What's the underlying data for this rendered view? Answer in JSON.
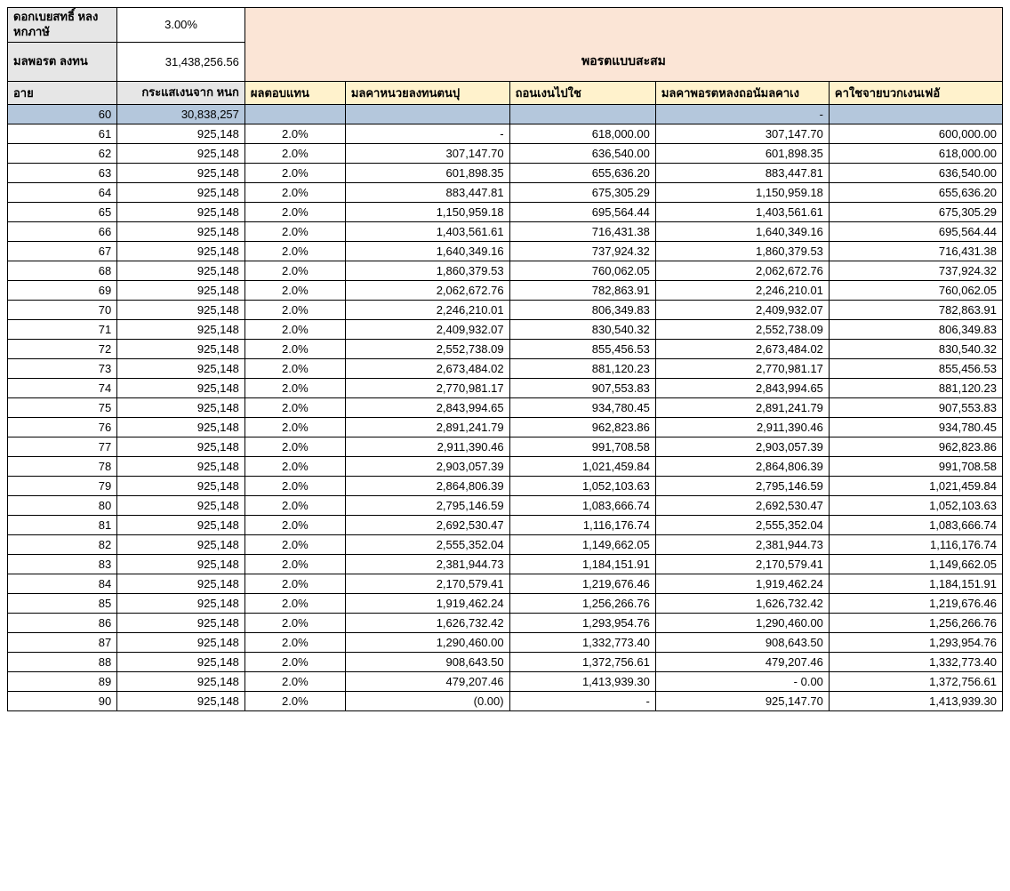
{
  "header": {
    "interest_label": "ดอกเบยสทธิ์\nหลงหกภาษั",
    "interest_value": "3.00%",
    "port_label": "มลพอรต\nลงทน",
    "port_value": "31,438,256.56",
    "section_title": "พอรตแบบสะสม"
  },
  "columns": {
    "age": "อาย",
    "cashflow": "กระแสเงนจาก\nหนก",
    "return": "ผลตอบแทน",
    "bop": "มลคาหนวยลงทนตนปุ",
    "withdraw": "ถอนเงนไปใช",
    "eop": "มลคาพอรตหลงถอนัมลคาเง",
    "expense": "คาใชจายบวกเงนเฟอั"
  },
  "rows": [
    {
      "age": "60",
      "cf": "30,838,257",
      "ret": "",
      "bop": "",
      "wd": "",
      "eop": "-",
      "exp": "",
      "sel": true
    },
    {
      "age": "61",
      "cf": "925,148",
      "ret": "2.0%",
      "bop": "-",
      "wd": "618,000.00",
      "eop": "307,147.70",
      "exp": "600,000.00"
    },
    {
      "age": "62",
      "cf": "925,148",
      "ret": "2.0%",
      "bop": "307,147.70",
      "wd": "636,540.00",
      "eop": "601,898.35",
      "exp": "618,000.00"
    },
    {
      "age": "63",
      "cf": "925,148",
      "ret": "2.0%",
      "bop": "601,898.35",
      "wd": "655,636.20",
      "eop": "883,447.81",
      "exp": "636,540.00"
    },
    {
      "age": "64",
      "cf": "925,148",
      "ret": "2.0%",
      "bop": "883,447.81",
      "wd": "675,305.29",
      "eop": "1,150,959.18",
      "exp": "655,636.20"
    },
    {
      "age": "65",
      "cf": "925,148",
      "ret": "2.0%",
      "bop": "1,150,959.18",
      "wd": "695,564.44",
      "eop": "1,403,561.61",
      "exp": "675,305.29"
    },
    {
      "age": "66",
      "cf": "925,148",
      "ret": "2.0%",
      "bop": "1,403,561.61",
      "wd": "716,431.38",
      "eop": "1,640,349.16",
      "exp": "695,564.44"
    },
    {
      "age": "67",
      "cf": "925,148",
      "ret": "2.0%",
      "bop": "1,640,349.16",
      "wd": "737,924.32",
      "eop": "1,860,379.53",
      "exp": "716,431.38"
    },
    {
      "age": "68",
      "cf": "925,148",
      "ret": "2.0%",
      "bop": "1,860,379.53",
      "wd": "760,062.05",
      "eop": "2,062,672.76",
      "exp": "737,924.32"
    },
    {
      "age": "69",
      "cf": "925,148",
      "ret": "2.0%",
      "bop": "2,062,672.76",
      "wd": "782,863.91",
      "eop": "2,246,210.01",
      "exp": "760,062.05"
    },
    {
      "age": "70",
      "cf": "925,148",
      "ret": "2.0%",
      "bop": "2,246,210.01",
      "wd": "806,349.83",
      "eop": "2,409,932.07",
      "exp": "782,863.91"
    },
    {
      "age": "71",
      "cf": "925,148",
      "ret": "2.0%",
      "bop": "2,409,932.07",
      "wd": "830,540.32",
      "eop": "2,552,738.09",
      "exp": "806,349.83"
    },
    {
      "age": "72",
      "cf": "925,148",
      "ret": "2.0%",
      "bop": "2,552,738.09",
      "wd": "855,456.53",
      "eop": "2,673,484.02",
      "exp": "830,540.32"
    },
    {
      "age": "73",
      "cf": "925,148",
      "ret": "2.0%",
      "bop": "2,673,484.02",
      "wd": "881,120.23",
      "eop": "2,770,981.17",
      "exp": "855,456.53"
    },
    {
      "age": "74",
      "cf": "925,148",
      "ret": "2.0%",
      "bop": "2,770,981.17",
      "wd": "907,553.83",
      "eop": "2,843,994.65",
      "exp": "881,120.23"
    },
    {
      "age": "75",
      "cf": "925,148",
      "ret": "2.0%",
      "bop": "2,843,994.65",
      "wd": "934,780.45",
      "eop": "2,891,241.79",
      "exp": "907,553.83"
    },
    {
      "age": "76",
      "cf": "925,148",
      "ret": "2.0%",
      "bop": "2,891,241.79",
      "wd": "962,823.86",
      "eop": "2,911,390.46",
      "exp": "934,780.45"
    },
    {
      "age": "77",
      "cf": "925,148",
      "ret": "2.0%",
      "bop": "2,911,390.46",
      "wd": "991,708.58",
      "eop": "2,903,057.39",
      "exp": "962,823.86"
    },
    {
      "age": "78",
      "cf": "925,148",
      "ret": "2.0%",
      "bop": "2,903,057.39",
      "wd": "1,021,459.84",
      "eop": "2,864,806.39",
      "exp": "991,708.58"
    },
    {
      "age": "79",
      "cf": "925,148",
      "ret": "2.0%",
      "bop": "2,864,806.39",
      "wd": "1,052,103.63",
      "eop": "2,795,146.59",
      "exp": "1,021,459.84"
    },
    {
      "age": "80",
      "cf": "925,148",
      "ret": "2.0%",
      "bop": "2,795,146.59",
      "wd": "1,083,666.74",
      "eop": "2,692,530.47",
      "exp": "1,052,103.63"
    },
    {
      "age": "81",
      "cf": "925,148",
      "ret": "2.0%",
      "bop": "2,692,530.47",
      "wd": "1,116,176.74",
      "eop": "2,555,352.04",
      "exp": "1,083,666.74"
    },
    {
      "age": "82",
      "cf": "925,148",
      "ret": "2.0%",
      "bop": "2,555,352.04",
      "wd": "1,149,662.05",
      "eop": "2,381,944.73",
      "exp": "1,116,176.74"
    },
    {
      "age": "83",
      "cf": "925,148",
      "ret": "2.0%",
      "bop": "2,381,944.73",
      "wd": "1,184,151.91",
      "eop": "2,170,579.41",
      "exp": "1,149,662.05"
    },
    {
      "age": "84",
      "cf": "925,148",
      "ret": "2.0%",
      "bop": "2,170,579.41",
      "wd": "1,219,676.46",
      "eop": "1,919,462.24",
      "exp": "1,184,151.91"
    },
    {
      "age": "85",
      "cf": "925,148",
      "ret": "2.0%",
      "bop": "1,919,462.24",
      "wd": "1,256,266.76",
      "eop": "1,626,732.42",
      "exp": "1,219,676.46"
    },
    {
      "age": "86",
      "cf": "925,148",
      "ret": "2.0%",
      "bop": "1,626,732.42",
      "wd": "1,293,954.76",
      "eop": "1,290,460.00",
      "exp": "1,256,266.76"
    },
    {
      "age": "87",
      "cf": "925,148",
      "ret": "2.0%",
      "bop": "1,290,460.00",
      "wd": "1,332,773.40",
      "eop": "908,643.50",
      "exp": "1,293,954.76"
    },
    {
      "age": "88",
      "cf": "925,148",
      "ret": "2.0%",
      "bop": "908,643.50",
      "wd": "1,372,756.61",
      "eop": "479,207.46",
      "exp": "1,332,773.40"
    },
    {
      "age": "89",
      "cf": "925,148",
      "ret": "2.0%",
      "bop": "479,207.46",
      "wd": "1,413,939.30",
      "eop": "-                      0.00",
      "exp": "1,372,756.61"
    },
    {
      "age": "90",
      "cf": "925,148",
      "ret": "2.0%",
      "bop": "(0.00)",
      "wd": "-",
      "eop": "925,147.70",
      "exp": "1,413,939.30"
    }
  ]
}
